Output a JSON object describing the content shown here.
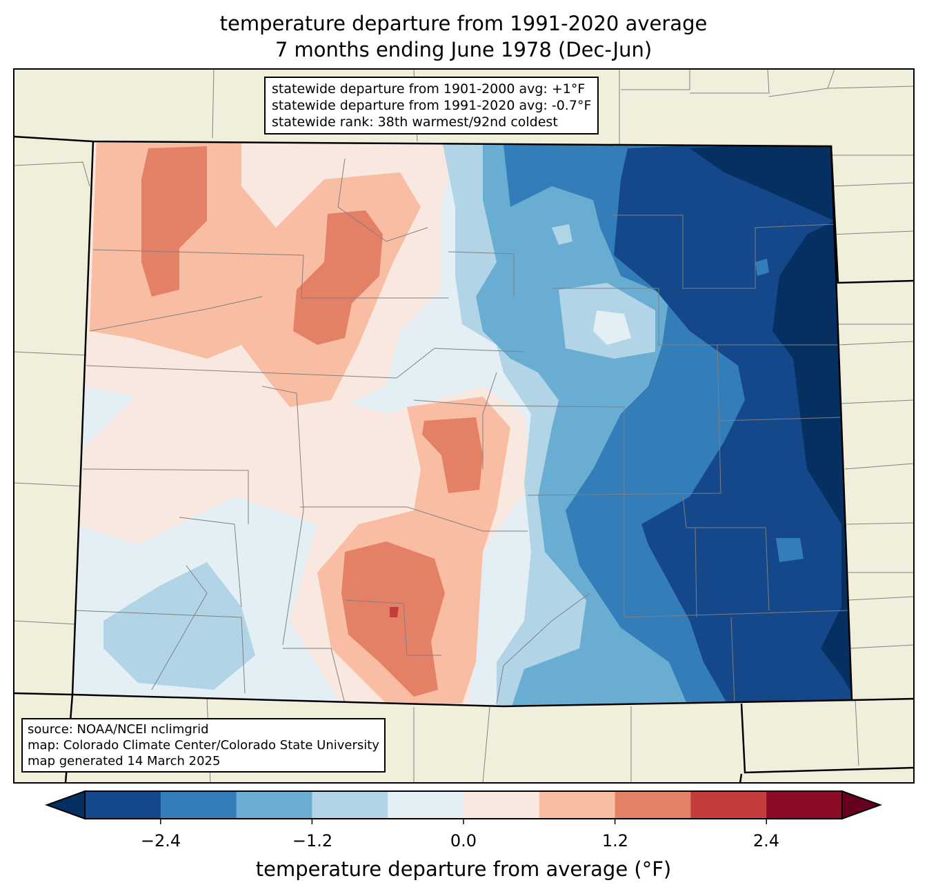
{
  "title": {
    "line1": "temperature departure from 1991-2020 average",
    "line2": "7 months ending June 1978 (Dec-Jun)"
  },
  "stats_box": {
    "line1": "statewide departure from 1901-2000 avg: +1°F",
    "line2": "statewide departure from 1991-2020 avg: -0.7°F",
    "line3": "statewide rank: 38th warmest/92nd coldest"
  },
  "source_box": {
    "line1": "source: NOAA/NCEI nclimgrid",
    "line2": "map: Colorado Climate Center/Colorado State University",
    "line3": "map generated 14 March 2025"
  },
  "colorbar": {
    "label": "temperature departure from average (°F)",
    "levels": [
      -3.0,
      -2.4,
      -1.8,
      -1.2,
      -0.6,
      0.0,
      0.6,
      1.2,
      1.8,
      2.4,
      3.0
    ],
    "ticks": [
      "−2.4",
      "−1.2",
      "0.0",
      "1.2",
      "2.4"
    ],
    "colors": [
      "#15488a",
      "#337eb8",
      "#6aadd2",
      "#b1d4e7",
      "#e4eef5",
      "#f9e8df",
      "#f8bda2",
      "#e48066",
      "#c43c3c",
      "#8a0c27"
    ],
    "extend_low_color": "#053061",
    "extend_high_color": "#67001f"
  },
  "colors": {
    "land": "#efefdc",
    "county_lines": "#808080",
    "state_lines": "#000000"
  }
}
